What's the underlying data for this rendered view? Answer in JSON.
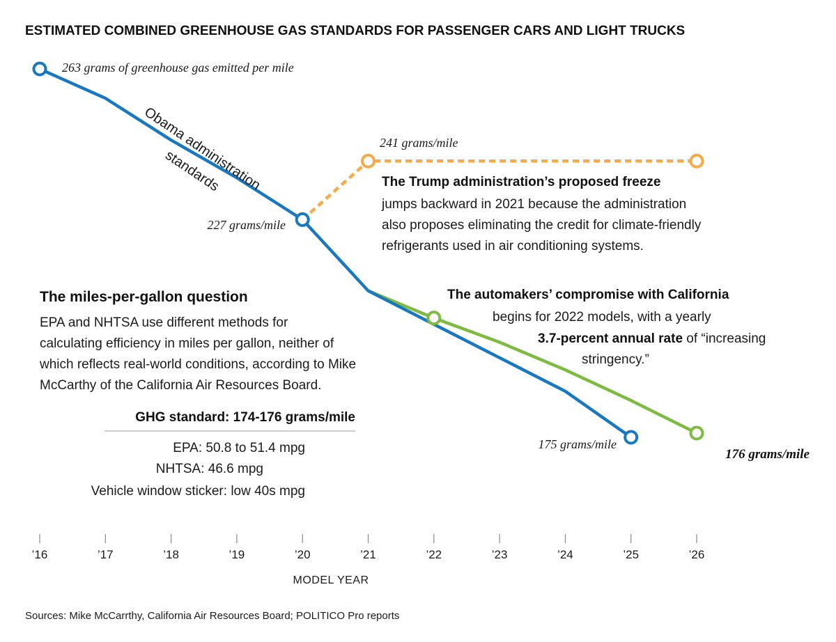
{
  "title": "ESTIMATED COMBINED GREENHOUSE GAS STANDARDS FOR PASSENGER CARS AND LIGHT TRUCKS",
  "chart_data": {
    "type": "line",
    "title": "ESTIMATED COMBINED GREENHOUSE GAS STANDARDS FOR PASSENGER CARS AND LIGHT TRUCKS",
    "xlabel": "MODEL YEAR",
    "ylabel": "",
    "x": [
      2016,
      2017,
      2018,
      2019,
      2020,
      2021,
      2022,
      2023,
      2024,
      2025,
      2026
    ],
    "tick_labels": [
      "’16",
      "’17",
      "’18",
      "’19",
      "’20",
      "’21",
      "’22",
      "’23",
      "’24",
      "’25",
      "’26"
    ],
    "ylim": [
      172,
      265
    ],
    "grid": false,
    "series": [
      {
        "name": "Obama administration standards",
        "color": "#1a78be",
        "style": "solid",
        "x": [
          2016,
          2017,
          2018,
          2019,
          2020,
          2021,
          2022,
          2023,
          2024,
          2025
        ],
        "values": [
          263,
          256,
          246,
          237,
          227,
          210,
          202,
          194,
          186,
          175
        ],
        "markers": [
          2016,
          2020,
          2025
        ]
      },
      {
        "name": "The Trump administration’s proposed freeze",
        "color": "#f5ac48",
        "style": "dashed",
        "x": [
          2020,
          2021,
          2022,
          2023,
          2024,
          2025,
          2026
        ],
        "values": [
          227,
          241,
          241,
          241,
          241,
          241,
          241
        ],
        "markers": [
          2021,
          2026
        ]
      },
      {
        "name": "The automakers’ compromise with California",
        "color": "#7dbb42",
        "style": "solid",
        "x": [
          2021,
          2022,
          2023,
          2024,
          2025,
          2026
        ],
        "values": [
          210,
          203.5,
          197.7,
          191.1,
          183.8,
          176
        ],
        "markers": [
          2022,
          2026
        ]
      }
    ],
    "point_labels": {
      "start": "263 grams of greenhouse gas emitted per mile",
      "obama_2020": "227 grams/mile",
      "freeze_2021": "241 grams/mile",
      "obama_2025": "175 grams/mile",
      "compromise_2026": "176 grams/mile"
    },
    "series_label": {
      "line1": "Obama administration",
      "line2": "standards"
    }
  },
  "annotations": {
    "trump": {
      "bold": "The Trump administration’s proposed freeze",
      "lines": [
        "jumps backward in 2021 because the administration",
        "also proposes eliminating the credit for climate-friendly",
        "refrigerants used in air conditioning systems."
      ]
    },
    "compromise": {
      "bold": "The automakers’ compromise with California",
      "line2": "begins for 2022 models, with a yearly",
      "line3_bold": "3.7-percent annual rate",
      "line3_rest": " of “increasing",
      "line4": "stringency.”"
    }
  },
  "mpg_box": {
    "heading": "The miles-per-gallon question",
    "body": [
      "EPA and NHTSA use different methods for",
      "calculating efficiency in miles per gallon, neither of",
      "which reflects real-world conditions, according to Mike",
      "McCarthy of the California Air Resources Board."
    ],
    "subheading": "GHG standard: 174-176 grams/mile",
    "rows": [
      {
        "label": "EPA:",
        "value": "50.8 to 51.4 mpg"
      },
      {
        "label": "NHTSA:",
        "value": "46.6 mpg"
      },
      {
        "label": "Vehicle window sticker:",
        "value": "low 40s mpg"
      }
    ]
  },
  "source": "Sources: Mike McCarrthy, California Air Resources Board; POLITICO Pro reports"
}
